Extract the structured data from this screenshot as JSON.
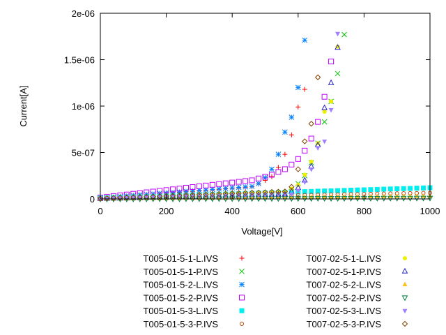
{
  "chart_data": {
    "type": "scatter",
    "title": "",
    "xlabel": "Voltage[V]",
    "ylabel": "Current[A]",
    "xlim": [
      0,
      1000
    ],
    "ylim": [
      0,
      2e-06
    ],
    "x_ticks": [
      0,
      200,
      400,
      600,
      800,
      1000
    ],
    "x_tick_labels": [
      "0",
      "200",
      "400",
      "600",
      "800",
      "1000"
    ],
    "y_ticks": [
      0,
      5e-07,
      1e-06,
      1.5e-06,
      2e-06
    ],
    "y_tick_labels": [
      "0",
      "5e-07",
      "1e-06",
      "1.5e-06",
      "2e-06"
    ],
    "grid": false,
    "legend_placement": "below, two columns",
    "series": [
      {
        "name": "T005-01-5-1-L.IVS",
        "marker": "plus",
        "color": "#ff0000",
        "x_start": 0,
        "x_step": 20,
        "y": [
          5e-09,
          1e-08,
          1.6e-08,
          2.1e-08,
          2.7e-08,
          3.2e-08,
          3.8e-08,
          4.3e-08,
          4.9e-08,
          5.4e-08,
          5.9e-08,
          6.5e-08,
          7e-08,
          7.6e-08,
          8.1e-08,
          8.7e-08,
          9.2e-08,
          9.7e-08,
          1.03e-07,
          1.08e-07,
          1.14e-07,
          1.19e-07,
          1.25e-07,
          1.3e-07,
          1.6e-07,
          2e-07,
          2.4e-07,
          3.4e-07,
          4.8e-07,
          6.9e-07,
          9.9e-07,
          1.18e-06
        ]
      },
      {
        "name": "T005-01-5-1-P.IVS",
        "marker": "cross",
        "color": "#00c000",
        "x_start": 0,
        "x_step": 20,
        "y": [
          5e-09,
          7e-09,
          8e-09,
          1e-08,
          1.1e-08,
          1.3e-08,
          1.5e-08,
          1.6e-08,
          1.8e-08,
          1.9e-08,
          2.1e-08,
          2.3e-08,
          2.4e-08,
          2.6e-08,
          2.8e-08,
          2.9e-08,
          3.1e-08,
          3.2e-08,
          3.4e-08,
          3.6e-08,
          3.7e-08,
          3.9e-08,
          4e-08,
          4.2e-08,
          4.4e-08,
          4.5e-08,
          4.7e-08,
          4.8e-08,
          5e-08,
          8e-08,
          1.65e-07,
          2.5e-07,
          3.9e-07,
          6e-07,
          8.3e-07,
          1.05e-06,
          1.35e-06,
          1.77e-06
        ]
      },
      {
        "name": "T005-01-5-2-L.IVS",
        "marker": "star",
        "color": "#0080ff",
        "x_start": 0,
        "x_step": 20,
        "y": [
          1e-08,
          1.5e-08,
          2.1e-08,
          2.6e-08,
          3.2e-08,
          3.7e-08,
          4.3e-08,
          4.8e-08,
          5.4e-08,
          5.9e-08,
          6.4e-08,
          7e-08,
          7.5e-08,
          8.1e-08,
          8.6e-08,
          9.2e-08,
          9.7e-08,
          1.02e-07,
          1.08e-07,
          1.13e-07,
          1.19e-07,
          1.24e-07,
          1.3e-07,
          1.35e-07,
          1.65e-07,
          2.3e-07,
          3.2e-07,
          4.8e-07,
          7.2e-07,
          8.8e-07,
          1.2e-06,
          1.71e-06
        ]
      },
      {
        "name": "T005-01-5-2-P.IVS",
        "marker": "box",
        "color": "#c000ff",
        "x_start": 0,
        "x_step": 20,
        "y": [
          1.5e-08,
          2.3e-08,
          3.1e-08,
          3.9e-08,
          4.7e-08,
          5.5e-08,
          6.3e-08,
          7.1e-08,
          7.9e-08,
          8.7e-08,
          9.5e-08,
          1.03e-07,
          1.11e-07,
          1.2e-07,
          1.28e-07,
          1.36e-07,
          1.44e-07,
          1.52e-07,
          1.6e-07,
          1.68e-07,
          1.76e-07,
          1.84e-07,
          1.92e-07,
          2e-07,
          2.2e-07,
          2.4e-07,
          2.6e-07,
          2.9e-07,
          3.2e-07,
          3.7e-07,
          4.3e-07,
          5.2e-07,
          6.5e-07,
          8.3e-07,
          1.1e-06,
          1.48e-06
        ]
      },
      {
        "name": "T005-01-5-3-L.IVS",
        "marker": "filled-box",
        "color": "#00eeee",
        "x_start": 0,
        "x_step": 20,
        "y": [
          1e-08,
          1.2e-08,
          1.4e-08,
          1.7e-08,
          1.9e-08,
          2.1e-08,
          2.3e-08,
          2.5e-08,
          2.8e-08,
          3e-08,
          3.2e-08,
          3.4e-08,
          3.6e-08,
          3.9e-08,
          4.1e-08,
          4.3e-08,
          4.5e-08,
          4.7e-08,
          5e-08,
          5.2e-08,
          5.4e-08,
          5.6e-08,
          5.8e-08,
          6.1e-08,
          6.3e-08,
          6.5e-08,
          6.7e-08,
          6.9e-08,
          7.2e-08,
          7.4e-08,
          7.6e-08,
          7.8e-08,
          8e-08,
          8.3e-08,
          8.5e-08,
          8.7e-08,
          8.9e-08,
          9.1e-08,
          9.4e-08,
          9.6e-08,
          9.8e-08,
          1e-07,
          1.02e-07,
          1.05e-07,
          1.07e-07,
          1.09e-07,
          1.11e-07,
          1.13e-07,
          1.16e-07,
          1.18e-07,
          1.2e-07
        ]
      },
      {
        "name": "T005-01-5-3-P.IVS",
        "marker": "circle",
        "color": "#c04000",
        "x_start": 0,
        "x_step": 20,
        "y": [
          2e-09,
          3e-09,
          5e-09,
          6e-09,
          7e-09,
          8e-09,
          1e-08,
          1.1e-08,
          1.2e-08,
          1.3e-08,
          1.5e-08,
          1.6e-08,
          1.7e-08,
          1.8e-08,
          2e-08,
          2.1e-08,
          2.2e-08,
          2.3e-08,
          2.5e-08,
          2.6e-08,
          2.7e-08,
          2.8e-08,
          3e-08,
          3.1e-08,
          3.2e-08,
          3.3e-08,
          3.5e-08,
          3.6e-08,
          3.7e-08,
          3.8e-08,
          4e-08,
          4.1e-08,
          4.2e-08,
          4.4e-08,
          4.5e-08,
          4.6e-08,
          4.7e-08,
          4.9e-08,
          5e-08,
          5.1e-08,
          5.2e-08,
          5.4e-08,
          5.5e-08,
          5.6e-08,
          5.7e-08,
          5.9e-08,
          6e-08,
          6.1e-08,
          6.2e-08,
          6.4e-08,
          6.5e-08
        ]
      },
      {
        "name": "T007-02-5-1-L.IVS",
        "marker": "filled-circle",
        "color": "#eeee00",
        "x_start": 0,
        "x_step": 20,
        "y": [
          1e-08,
          1.2e-08,
          1.4e-08,
          1.6e-08,
          1.9e-08,
          2.1e-08,
          2.3e-08,
          2.5e-08,
          2.7e-08,
          2.9e-08,
          3.1e-08,
          3.4e-08,
          3.6e-08,
          3.8e-08,
          4e-08,
          4.2e-08,
          4.4e-08,
          4.6e-08,
          4.9e-08,
          5.1e-08,
          5.3e-08,
          5.5e-08,
          5.7e-08,
          5.9e-08,
          6.1e-08,
          6.4e-08,
          6.6e-08,
          6.8e-08,
          7e-08,
          1.1e-07,
          1.5e-07,
          2.6e-07,
          4e-07,
          6e-07,
          9.4e-07,
          1.05e-06,
          1.64e-06
        ]
      },
      {
        "name": "T007-02-5-1-P.IVS",
        "marker": "triangle",
        "color": "#2020c0",
        "x_start": 0,
        "x_step": 20,
        "y": [
          0,
          2e-09,
          4e-09,
          5e-09,
          7e-09,
          9e-09,
          1.1e-08,
          1.3e-08,
          1.4e-08,
          1.6e-08,
          1.8e-08,
          2e-08,
          2.1e-08,
          2.3e-08,
          2.5e-08,
          2.7e-08,
          2.9e-08,
          3e-08,
          3.2e-08,
          3.4e-08,
          3.6e-08,
          3.8e-08,
          3.9e-08,
          4.1e-08,
          4.3e-08,
          4.5e-08,
          4.6e-08,
          4.8e-08,
          5e-08,
          8e-08,
          1.2e-07,
          2e-07,
          3.5e-07,
          5.8e-07,
          9.8e-07,
          1.25e-06,
          1.63e-06
        ]
      },
      {
        "name": "T007-02-5-2-L.IVS",
        "marker": "filled-triangle",
        "color": "#ffc020",
        "x_start": 0,
        "x_step": 20,
        "y": [
          0,
          1e-09,
          1e-09,
          2e-09,
          2e-09,
          3e-09,
          4e-09,
          4e-09,
          5e-09,
          5e-09,
          6e-09,
          7e-09,
          7e-09,
          8e-09,
          8e-09,
          9e-09,
          1e-08,
          1e-08,
          1.1e-08,
          1.1e-08,
          1.2e-08,
          1.3e-08,
          1.3e-08,
          1.4e-08,
          1.4e-08,
          1.5e-08,
          1.6e-08,
          1.6e-08,
          1.7e-08,
          1.7e-08,
          1.8e-08,
          1.9e-08,
          1.9e-08,
          2e-08,
          2e-08,
          2.1e-08,
          2.2e-08,
          2.2e-08,
          2.3e-08,
          2.3e-08,
          2.4e-08,
          2.5e-08,
          2.5e-08,
          2.6e-08,
          2.6e-08,
          2.7e-08,
          2.8e-08,
          2.8e-08,
          2.9e-08,
          2.9e-08,
          3e-08
        ]
      },
      {
        "name": "T007-02-5-2-P.IVS",
        "marker": "inverted-triangle",
        "color": "#008040",
        "x_start": 0,
        "x_step": 20,
        "y": [
          0,
          0,
          0,
          1e-09,
          1e-09,
          1e-09,
          1e-09,
          1e-09,
          2e-09,
          2e-09,
          2e-09,
          2e-09,
          2e-09,
          3e-09,
          3e-09,
          3e-09,
          3e-09,
          3e-09,
          4e-09,
          4e-09,
          4e-09,
          4e-09,
          4e-09,
          5e-09,
          5e-09,
          5e-09,
          5e-09,
          5e-09,
          6e-09,
          6e-09,
          6e-09,
          6e-09,
          6e-09,
          7e-09,
          7e-09,
          7e-09,
          7e-09,
          7e-09,
          8e-09,
          8e-09,
          8e-09,
          8e-09,
          8e-09,
          9e-09,
          9e-09,
          9e-09,
          9e-09,
          9e-09,
          1e-08,
          1e-08,
          1e-08
        ]
      },
      {
        "name": "T007-02-5-3-L.IVS",
        "marker": "filled-inverted-triangle",
        "color": "#a080ff",
        "x_start": 0,
        "x_step": 20,
        "y": [
          5e-09,
          7e-09,
          8e-09,
          1e-08,
          1.1e-08,
          1.3e-08,
          1.4e-08,
          1.6e-08,
          1.7e-08,
          1.9e-08,
          2.1e-08,
          2.2e-08,
          2.4e-08,
          2.5e-08,
          2.7e-08,
          2.8e-08,
          3e-08,
          3.1e-08,
          3.3e-08,
          3.4e-08,
          3.6e-08,
          3.8e-08,
          3.9e-08,
          4.1e-08,
          4.2e-08,
          4.4e-08,
          4.5e-08,
          4.7e-08,
          4.8e-08,
          5e-08,
          9e-08,
          1.8e-07,
          3.2e-07,
          5.5e-07,
          6.2e-07,
          9.6e-07,
          1.78e-06
        ]
      },
      {
        "name": "T007-02-5-3-P.IVS",
        "marker": "diamond",
        "color": "#804000",
        "x_start": 0,
        "x_step": 20,
        "y": [
          5e-09,
          8e-09,
          1e-08,
          1.3e-08,
          1.6e-08,
          1.8e-08,
          2.1e-08,
          2.4e-08,
          2.6e-08,
          2.9e-08,
          3.2e-08,
          3.4e-08,
          3.7e-08,
          4e-08,
          4.2e-08,
          4.5e-08,
          4.8e-08,
          5.1e-08,
          5.3e-08,
          5.6e-08,
          5.9e-08,
          6.1e-08,
          6.4e-08,
          6.7e-08,
          6.9e-08,
          7.2e-08,
          7.5e-08,
          7.7e-08,
          8e-08,
          1.3e-07,
          3.2e-07,
          6.2e-07,
          8.1e-07,
          1.31e-06
        ]
      }
    ]
  }
}
